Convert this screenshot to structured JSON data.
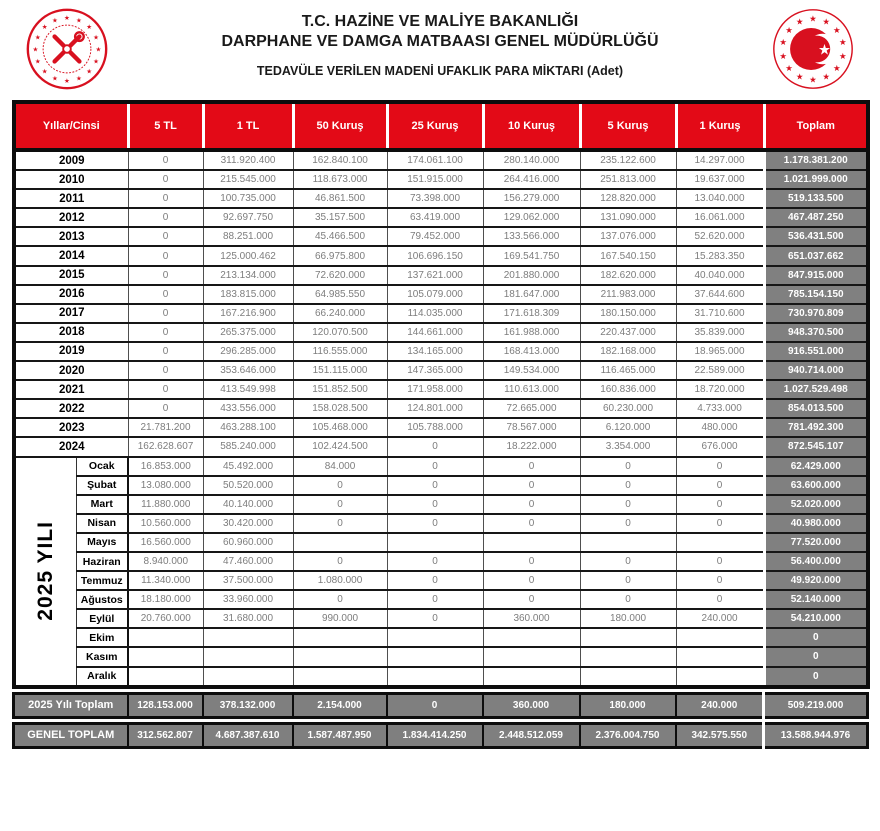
{
  "header": {
    "title_line1": "T.C. HAZİNE VE MALİYE BAKANLIĞI",
    "title_line2": "DARPHANE VE DAMGA MATBAASI GENEL MÜDÜRLÜĞÜ",
    "subtitle": "TEDAVÜLE VERİLEN MADENİ UFAKLIK PARA MİKTARI (Adet)",
    "left_logo": "darphane-mint-seal",
    "right_logo": "hazine-ministry-seal"
  },
  "colors": {
    "header_red": "#e30a17",
    "seal_red": "#d8101f",
    "total_gray": "#808080",
    "border_black": "#0d0d0d"
  },
  "chart_data": {
    "type": "table",
    "columns": [
      "Yıllar/Cinsi",
      "5 TL",
      "1 TL",
      "50 Kuruş",
      "25 Kuruş",
      "10 Kuruş",
      "5 Kuruş",
      "1 Kuruş",
      "Toplam"
    ],
    "year_rows": [
      {
        "label": "2009",
        "values": [
          "0",
          "311.920.400",
          "162.840.100",
          "174.061.100",
          "280.140.000",
          "235.122.600",
          "14.297.000"
        ],
        "total": "1.178.381.200"
      },
      {
        "label": "2010",
        "values": [
          "0",
          "215.545.000",
          "118.673.000",
          "151.915.000",
          "264.416.000",
          "251.813.000",
          "19.637.000"
        ],
        "total": "1.021.999.000"
      },
      {
        "label": "2011",
        "values": [
          "0",
          "100.735.000",
          "46.861.500",
          "73.398.000",
          "156.279.000",
          "128.820.000",
          "13.040.000"
        ],
        "total": "519.133.500"
      },
      {
        "label": "2012",
        "values": [
          "0",
          "92.697.750",
          "35.157.500",
          "63.419.000",
          "129.062.000",
          "131.090.000",
          "16.061.000"
        ],
        "total": "467.487.250"
      },
      {
        "label": "2013",
        "values": [
          "0",
          "88.251.000",
          "45.466.500",
          "79.452.000",
          "133.566.000",
          "137.076.000",
          "52.620.000"
        ],
        "total": "536.431.500"
      },
      {
        "label": "2014",
        "values": [
          "0",
          "125.000.462",
          "66.975.800",
          "106.696.150",
          "169.541.750",
          "167.540.150",
          "15.283.350"
        ],
        "total": "651.037.662"
      },
      {
        "label": "2015",
        "values": [
          "0",
          "213.134.000",
          "72.620.000",
          "137.621.000",
          "201.880.000",
          "182.620.000",
          "40.040.000"
        ],
        "total": "847.915.000"
      },
      {
        "label": "2016",
        "values": [
          "0",
          "183.815.000",
          "64.985.550",
          "105.079.000",
          "181.647.000",
          "211.983.000",
          "37.644.600"
        ],
        "total": "785.154.150"
      },
      {
        "label": "2017",
        "values": [
          "0",
          "167.216.900",
          "66.240.000",
          "114.035.000",
          "171.618.309",
          "180.150.000",
          "31.710.600"
        ],
        "total": "730.970.809"
      },
      {
        "label": "2018",
        "values": [
          "0",
          "265.375.000",
          "120.070.500",
          "144.661.000",
          "161.988.000",
          "220.437.000",
          "35.839.000"
        ],
        "total": "948.370.500"
      },
      {
        "label": "2019",
        "values": [
          "0",
          "296.285.000",
          "116.555.000",
          "134.165.000",
          "168.413.000",
          "182.168.000",
          "18.965.000"
        ],
        "total": "916.551.000"
      },
      {
        "label": "2020",
        "values": [
          "0",
          "353.646.000",
          "151.115.000",
          "147.365.000",
          "149.534.000",
          "116.465.000",
          "22.589.000"
        ],
        "total": "940.714.000"
      },
      {
        "label": "2021",
        "values": [
          "0",
          "413.549.998",
          "151.852.500",
          "171.958.000",
          "110.613.000",
          "160.836.000",
          "18.720.000"
        ],
        "total": "1.027.529.498"
      },
      {
        "label": "2022",
        "values": [
          "0",
          "433.556.000",
          "158.028.500",
          "124.801.000",
          "72.665.000",
          "60.230.000",
          "4.733.000"
        ],
        "total": "854.013.500"
      },
      {
        "label": "2023",
        "values": [
          "21.781.200",
          "463.288.100",
          "105.468.000",
          "105.788.000",
          "78.567.000",
          "6.120.000",
          "480.000"
        ],
        "total": "781.492.300"
      },
      {
        "label": "2024",
        "values": [
          "162.628.607",
          "585.240.000",
          "102.424.500",
          "0",
          "18.222.000",
          "3.354.000",
          "676.000"
        ],
        "total": "872.545.107"
      }
    ],
    "group_label": "2025 YILI",
    "month_rows": [
      {
        "label": "Ocak",
        "values": [
          "16.853.000",
          "45.492.000",
          "84.000",
          "0",
          "0",
          "0",
          "0"
        ],
        "total": "62.429.000"
      },
      {
        "label": "Şubat",
        "values": [
          "13.080.000",
          "50.520.000",
          "0",
          "0",
          "0",
          "0",
          "0"
        ],
        "total": "63.600.000"
      },
      {
        "label": "Mart",
        "values": [
          "11.880.000",
          "40.140.000",
          "0",
          "0",
          "0",
          "0",
          "0"
        ],
        "total": "52.020.000"
      },
      {
        "label": "Nisan",
        "values": [
          "10.560.000",
          "30.420.000",
          "0",
          "0",
          "0",
          "0",
          "0"
        ],
        "total": "40.980.000"
      },
      {
        "label": "Mayıs",
        "values": [
          "16.560.000",
          "60.960.000",
          "",
          "",
          "",
          "",
          ""
        ],
        "total": "77.520.000"
      },
      {
        "label": "Haziran",
        "values": [
          "8.940.000",
          "47.460.000",
          "0",
          "0",
          "0",
          "0",
          "0"
        ],
        "total": "56.400.000"
      },
      {
        "label": "Temmuz",
        "values": [
          "11.340.000",
          "37.500.000",
          "1.080.000",
          "0",
          "0",
          "0",
          "0"
        ],
        "total": "49.920.000"
      },
      {
        "label": "Ağustos",
        "values": [
          "18.180.000",
          "33.960.000",
          "0",
          "0",
          "0",
          "0",
          "0"
        ],
        "total": "52.140.000"
      },
      {
        "label": "Eylül",
        "values": [
          "20.760.000",
          "31.680.000",
          "990.000",
          "0",
          "360.000",
          "180.000",
          "240.000"
        ],
        "total": "54.210.000"
      },
      {
        "label": "Ekim",
        "values": [
          "",
          "",
          "",
          "",
          "",
          "",
          ""
        ],
        "total": "0"
      },
      {
        "label": "Kasım",
        "values": [
          "",
          "",
          "",
          "",
          "",
          "",
          ""
        ],
        "total": "0"
      },
      {
        "label": "Aralık",
        "values": [
          "",
          "",
          "",
          "",
          "",
          "",
          ""
        ],
        "total": "0"
      }
    ],
    "summary_rows": [
      {
        "label": "2025 Yılı Toplam",
        "values": [
          "128.153.000",
          "378.132.000",
          "2.154.000",
          "0",
          "360.000",
          "180.000",
          "240.000"
        ],
        "total": "509.219.000"
      },
      {
        "label": "GENEL TOPLAM",
        "values": [
          "312.562.807",
          "4.687.387.610",
          "1.587.487.950",
          "1.834.414.250",
          "2.448.512.059",
          "2.376.004.750",
          "342.575.550"
        ],
        "total": "13.588.944.976"
      }
    ]
  }
}
